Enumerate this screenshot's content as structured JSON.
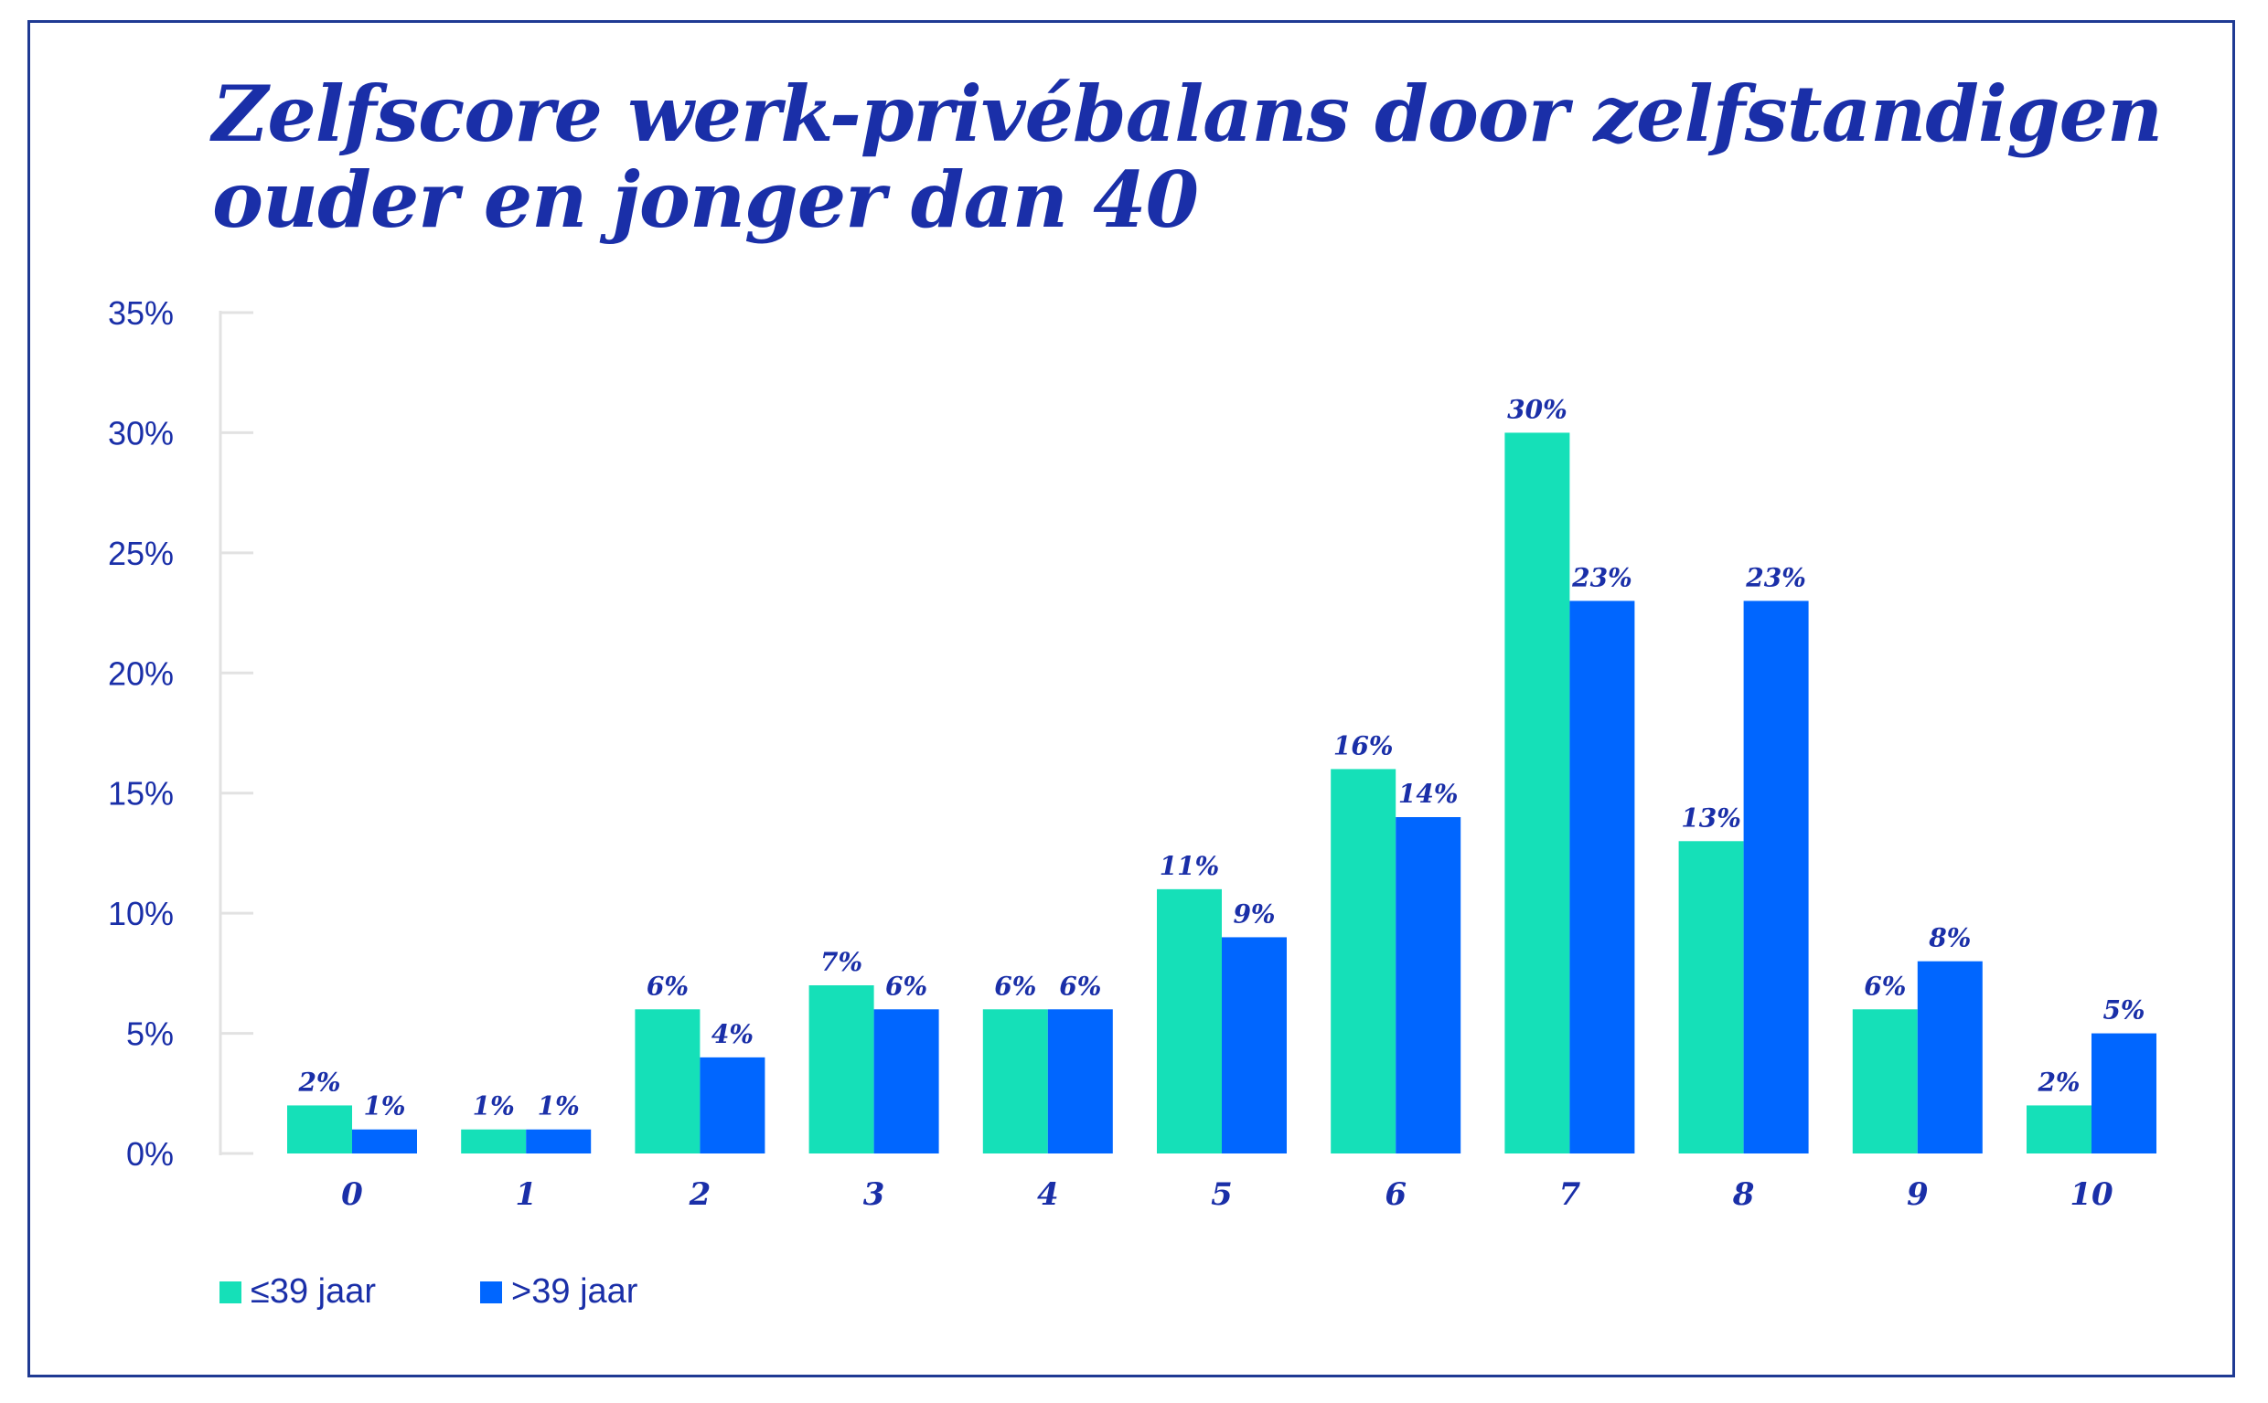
{
  "title_line1": "Zelfscore werk-privébalans door zelfstandigen",
  "title_line2": "ouder en jonger dan 40",
  "colors": {
    "series1": "#15e0b8",
    "series2": "#0066ff",
    "text": "#1a2fa8",
    "border": "#1f3a93",
    "axis": "#e2e2e2"
  },
  "chart_data": {
    "type": "bar",
    "title": "Zelfscore werk-privébalans door zelfstandigen ouder en jonger dan 40",
    "xlabel": "",
    "ylabel": "",
    "ylim": [
      0,
      35
    ],
    "y_ticks": [
      0,
      5,
      10,
      15,
      20,
      25,
      30,
      35
    ],
    "y_tick_labels": [
      "0%",
      "5%",
      "10%",
      "15%",
      "20%",
      "25%",
      "30%",
      "35%"
    ],
    "categories": [
      "0",
      "1",
      "2",
      "3",
      "4",
      "5",
      "6",
      "7",
      "8",
      "9",
      "10"
    ],
    "series": [
      {
        "name": "≤39 jaar",
        "values": [
          2,
          1,
          6,
          7,
          6,
          11,
          16,
          30,
          13,
          6,
          2
        ],
        "labels": [
          "2%",
          "1%",
          "6%",
          "7%",
          "6%",
          "11%",
          "16%",
          "30%",
          "13%",
          "6%",
          "2%"
        ]
      },
      {
        "name": ">39 jaar",
        "values": [
          1,
          1,
          4,
          6,
          6,
          9,
          14,
          23,
          23,
          8,
          5
        ],
        "labels": [
          "1%",
          "1%",
          "4%",
          "6%",
          "6%",
          "9%",
          "14%",
          "23%",
          "23%",
          "8%",
          "5%"
        ]
      }
    ],
    "grid": false,
    "legend_position": "bottom-left"
  }
}
